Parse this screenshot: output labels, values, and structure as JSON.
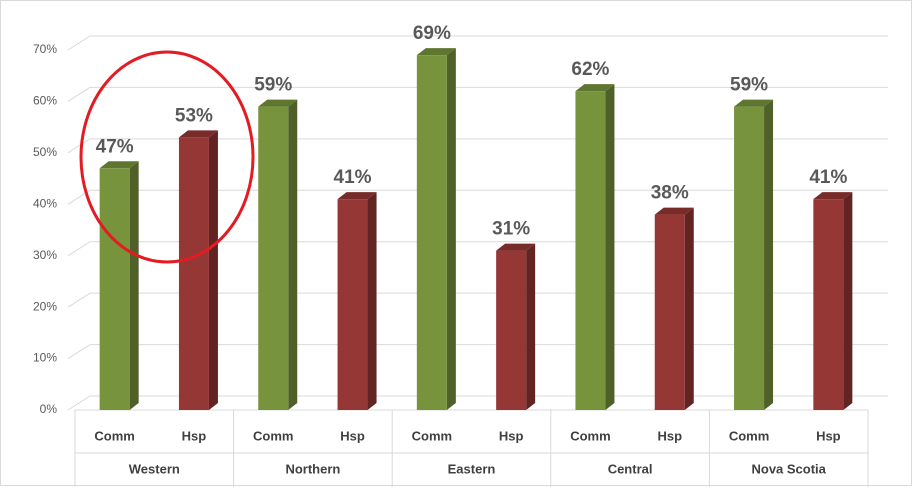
{
  "chart_data": {
    "type": "bar",
    "categories": [
      "Western",
      "Northern",
      "Eastern",
      "Central",
      "Nova Scotia"
    ],
    "series": [
      {
        "name": "Comm",
        "color": "#77933c",
        "values": [
          47,
          59,
          69,
          62,
          59
        ],
        "value_labels": [
          "47%",
          "59%",
          "69%",
          "62%",
          "59%"
        ]
      },
      {
        "name": "Hsp",
        "color": "#953735",
        "values": [
          53,
          41,
          31,
          38,
          41
        ],
        "value_labels": [
          "53%",
          "41%",
          "31%",
          "38%",
          "41%"
        ]
      }
    ],
    "ylim": [
      0,
      70
    ],
    "yticks": [
      {
        "value": 0,
        "label": "0%"
      },
      {
        "value": 10,
        "label": "10%"
      },
      {
        "value": 20,
        "label": "20%"
      },
      {
        "value": 30,
        "label": "30%"
      },
      {
        "value": 40,
        "label": "40%"
      },
      {
        "value": 50,
        "label": "50%"
      },
      {
        "value": 60,
        "label": "60%"
      },
      {
        "value": 70,
        "label": "70%"
      }
    ],
    "grid": true
  }
}
